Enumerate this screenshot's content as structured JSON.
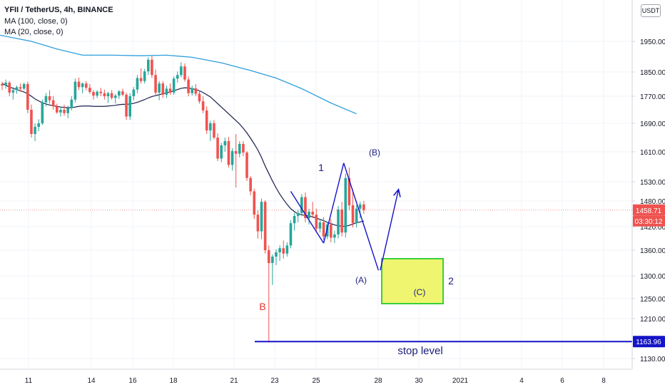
{
  "header": {
    "symbol": "YFII / TetherUS, 4h, BINANCE",
    "ma100": "MA (100, close, 0)",
    "ma20": "MA (20, close, 0)",
    "currency": "USDT"
  },
  "price_axis": {
    "ticks": [
      "1950.00",
      "1850.00",
      "1770.00",
      "1690.00",
      "1610.00",
      "1530.00",
      "1480.00",
      "1420.00",
      "1360.00",
      "1300.00",
      "1250.00",
      "1210.00",
      "1130.00"
    ],
    "last_price": "1458.71",
    "countdown": "03:30:12",
    "stop_value": "1163.96"
  },
  "time_axis": {
    "ticks": [
      "11",
      "14",
      "16",
      "18",
      "21",
      "23",
      "25",
      "28",
      "30",
      "2021",
      "4",
      "6",
      "8"
    ]
  },
  "annotations": {
    "wave_1": "1",
    "wave_A": "(A)",
    "wave_B": "(B)",
    "wave_C": "(C)",
    "wave_2": "2",
    "label_B": "B",
    "stop_label": "stop level"
  },
  "colors": {
    "up": "#26a69a",
    "down": "#ef5350",
    "ma100": "#2e9fdc",
    "ma20": "#1a1d4a",
    "wave_line": "#1414c8",
    "stop_line": "#1414c8",
    "target_fill": "#f0f570",
    "target_border": "#3ad13a",
    "label_B": "#e0332f",
    "last_price_bg": "#ef5350",
    "countdown_bg": "#ef5350",
    "stop_bg": "#1414c8"
  },
  "chart_data": {
    "type": "candlestick",
    "interval": "4h",
    "ylim": [
      1100,
      2010
    ],
    "x_ticks": [
      "11",
      "14",
      "16",
      "18",
      "21",
      "23",
      "25",
      "28",
      "30",
      "2021",
      "4",
      "6",
      "8"
    ],
    "y_ticks": [
      1950,
      1850,
      1770,
      1690,
      1610,
      1530,
      1480,
      1420,
      1360,
      1300,
      1250,
      1210,
      1130
    ],
    "last_price": 1458.71,
    "stop_level": 1163.96,
    "target_zone": {
      "low": 1240,
      "high": 1340
    },
    "candles": [
      [
        1810,
        1818,
        1790,
        1805
      ],
      [
        1805,
        1825,
        1795,
        1815
      ],
      [
        1815,
        1820,
        1770,
        1782
      ],
      [
        1782,
        1800,
        1760,
        1790
      ],
      [
        1790,
        1805,
        1778,
        1800
      ],
      [
        1800,
        1812,
        1785,
        1795
      ],
      [
        1795,
        1815,
        1790,
        1810
      ],
      [
        1810,
        1818,
        1720,
        1730
      ],
      [
        1730,
        1745,
        1650,
        1660
      ],
      [
        1660,
        1690,
        1640,
        1680
      ],
      [
        1680,
        1702,
        1668,
        1690
      ],
      [
        1690,
        1760,
        1685,
        1752
      ],
      [
        1752,
        1780,
        1740,
        1770
      ],
      [
        1770,
        1790,
        1748,
        1758
      ],
      [
        1758,
        1770,
        1730,
        1740
      ],
      [
        1740,
        1748,
        1718,
        1722
      ],
      [
        1722,
        1738,
        1710,
        1730
      ],
      [
        1730,
        1745,
        1712,
        1720
      ],
      [
        1720,
        1742,
        1705,
        1735
      ],
      [
        1735,
        1770,
        1728,
        1760
      ],
      [
        1760,
        1828,
        1752,
        1818
      ],
      [
        1818,
        1832,
        1790,
        1800
      ],
      [
        1800,
        1815,
        1780,
        1812
      ],
      [
        1812,
        1820,
        1790,
        1798
      ],
      [
        1798,
        1810,
        1778,
        1784
      ],
      [
        1784,
        1790,
        1760,
        1772
      ],
      [
        1772,
        1790,
        1765,
        1785
      ],
      [
        1785,
        1798,
        1770,
        1780
      ],
      [
        1780,
        1792,
        1760,
        1770
      ],
      [
        1770,
        1785,
        1750,
        1780
      ],
      [
        1780,
        1790,
        1760,
        1765
      ],
      [
        1765,
        1778,
        1748,
        1772
      ],
      [
        1772,
        1790,
        1762,
        1786
      ],
      [
        1786,
        1795,
        1770,
        1775
      ],
      [
        1775,
        1782,
        1700,
        1710
      ],
      [
        1710,
        1780,
        1700,
        1770
      ],
      [
        1770,
        1800,
        1758,
        1792
      ],
      [
        1792,
        1840,
        1780,
        1830
      ],
      [
        1830,
        1862,
        1812,
        1820
      ],
      [
        1820,
        1860,
        1812,
        1852
      ],
      [
        1852,
        1898,
        1840,
        1890
      ],
      [
        1890,
        1902,
        1830,
        1840
      ],
      [
        1840,
        1858,
        1770,
        1782
      ],
      [
        1782,
        1820,
        1758,
        1812
      ],
      [
        1812,
        1820,
        1765,
        1775
      ],
      [
        1775,
        1805,
        1765,
        1795
      ],
      [
        1795,
        1812,
        1775,
        1782
      ],
      [
        1782,
        1835,
        1775,
        1828
      ],
      [
        1828,
        1852,
        1815,
        1840
      ],
      [
        1840,
        1882,
        1832,
        1868
      ],
      [
        1868,
        1878,
        1818,
        1825
      ],
      [
        1825,
        1835,
        1770,
        1780
      ],
      [
        1780,
        1805,
        1772,
        1796
      ],
      [
        1796,
        1810,
        1770,
        1778
      ],
      [
        1778,
        1790,
        1748,
        1755
      ],
      [
        1755,
        1770,
        1720,
        1728
      ],
      [
        1728,
        1740,
        1660,
        1670
      ],
      [
        1670,
        1698,
        1640,
        1690
      ],
      [
        1690,
        1700,
        1645,
        1650
      ],
      [
        1650,
        1662,
        1585,
        1592
      ],
      [
        1592,
        1635,
        1582,
        1628
      ],
      [
        1628,
        1650,
        1610,
        1640
      ],
      [
        1640,
        1652,
        1568,
        1575
      ],
      [
        1575,
        1620,
        1560,
        1612
      ],
      [
        1612,
        1660,
        1515,
        1605
      ],
      [
        1605,
        1640,
        1595,
        1632
      ],
      [
        1632,
        1640,
        1598,
        1608
      ],
      [
        1608,
        1612,
        1532,
        1540
      ],
      [
        1540,
        1545,
        1495,
        1505
      ],
      [
        1505,
        1512,
        1438,
        1448
      ],
      [
        1448,
        1458,
        1390,
        1408
      ],
      [
        1408,
        1486,
        1388,
        1478
      ],
      [
        1478,
        1482,
        1352,
        1360
      ],
      [
        1360,
        1372,
        1162,
        1330
      ],
      [
        1330,
        1350,
        1280,
        1345
      ],
      [
        1345,
        1362,
        1325,
        1355
      ],
      [
        1355,
        1372,
        1335,
        1365
      ],
      [
        1365,
        1385,
        1340,
        1352
      ],
      [
        1352,
        1380,
        1345,
        1372
      ],
      [
        1372,
        1435,
        1365,
        1428
      ],
      [
        1428,
        1452,
        1410,
        1445
      ],
      [
        1445,
        1460,
        1430,
        1452
      ],
      [
        1452,
        1498,
        1444,
        1490
      ],
      [
        1490,
        1502,
        1430,
        1440
      ],
      [
        1440,
        1462,
        1425,
        1455
      ],
      [
        1455,
        1478,
        1440,
        1448
      ],
      [
        1448,
        1462,
        1405,
        1415
      ],
      [
        1415,
        1438,
        1405,
        1430
      ],
      [
        1430,
        1442,
        1386,
        1395
      ],
      [
        1395,
        1432,
        1388,
        1425
      ],
      [
        1425,
        1438,
        1380,
        1392
      ],
      [
        1392,
        1410,
        1378,
        1400
      ],
      [
        1400,
        1468,
        1390,
        1460
      ],
      [
        1460,
        1478,
        1395,
        1405
      ],
      [
        1405,
        1552,
        1392,
        1540
      ],
      [
        1540,
        1568,
        1458,
        1470
      ],
      [
        1470,
        1510,
        1418,
        1428
      ],
      [
        1428,
        1470,
        1418,
        1462
      ],
      [
        1462,
        1478,
        1440,
        1472
      ],
      [
        1472,
        1480,
        1450,
        1458.71
      ]
    ],
    "ma20": [
      1812,
      1806,
      1800,
      1796,
      1792,
      1788,
      1784,
      1778,
      1770,
      1762,
      1756,
      1751,
      1747,
      1744,
      1742,
      1740,
      1738,
      1737,
      1736,
      1736,
      1738,
      1740,
      1741,
      1741,
      1741,
      1740,
      1740,
      1740,
      1740,
      1741,
      1742,
      1743,
      1745,
      1746,
      1746,
      1747,
      1749,
      1752,
      1756,
      1760,
      1765,
      1769,
      1772,
      1775,
      1778,
      1781,
      1784,
      1788,
      1792,
      1796,
      1798,
      1797,
      1795,
      1792,
      1788,
      1782,
      1775,
      1768,
      1758,
      1748,
      1738,
      1728,
      1718,
      1708,
      1698,
      1688,
      1676,
      1663,
      1648,
      1632,
      1615,
      1595,
      1572,
      1552,
      1532,
      1514,
      1498,
      1484,
      1472,
      1462,
      1455,
      1450,
      1448,
      1446,
      1445,
      1443,
      1440,
      1437,
      1434,
      1430,
      1427,
      1424,
      1422,
      1421,
      1421,
      1423,
      1426,
      1429,
      1431,
      1433
    ],
    "ma100_x_index": [
      0,
      8,
      15,
      22,
      30,
      38,
      45,
      52,
      60,
      68,
      75,
      82,
      90,
      97
    ],
    "ma100": [
      1970,
      1950,
      1925,
      1905,
      1905,
      1903,
      1905,
      1898,
      1880,
      1855,
      1830,
      1795,
      1750,
      1718
    ],
    "waves": {
      "impulse_1_to_A": [
        [
          79,
          1505
        ],
        [
          88,
          1378
        ]
      ],
      "A_to_B": [
        [
          88,
          1378
        ],
        [
          93.5,
          1580
        ]
      ],
      "B_to_C_projection": [
        [
          93.5,
          1580
        ],
        [
          103,
          1313
        ]
      ],
      "C_to_2_projection": [
        [
          103.5,
          1313
        ],
        [
          108.5,
          1510
        ]
      ]
    }
  }
}
